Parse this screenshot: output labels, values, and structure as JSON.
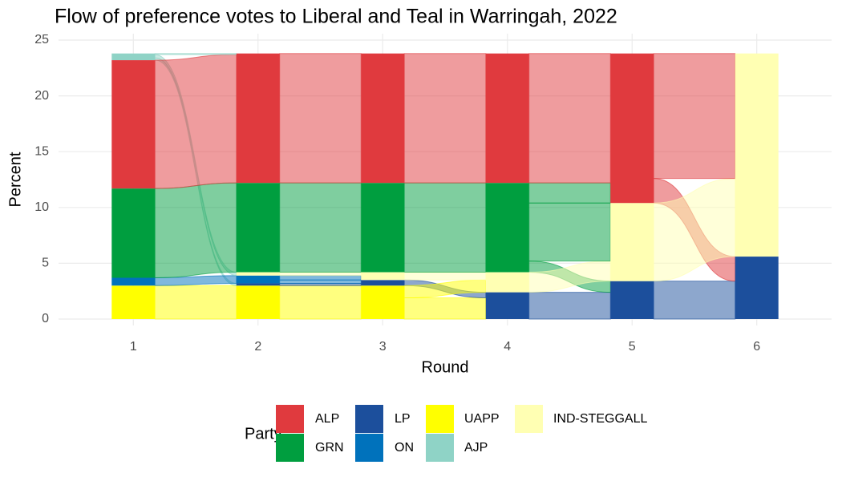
{
  "chart_data": {
    "type": "alluvial",
    "title": "Flow of preference votes to Liberal and Teal in Warringah, 2022",
    "x_label": "Round",
    "y_label": "Percent",
    "legend_title": "Party",
    "x": [
      1,
      2,
      3,
      4,
      5,
      6
    ],
    "xlim": [
      0.4,
      6.6
    ],
    "xticks": [
      1,
      2,
      3,
      4,
      5,
      6
    ],
    "ylim": [
      0,
      25
    ],
    "yticks": [
      0,
      5,
      10,
      15,
      20,
      25
    ],
    "grid": true,
    "legend": "bottom",
    "series": [
      {
        "name": "ALP",
        "color": "#e03a3e",
        "values": [
          11.5,
          11.6,
          11.6,
          11.6,
          13.4,
          null
        ]
      },
      {
        "name": "GRN",
        "color": "#009e3f",
        "values": [
          8.0,
          8.0,
          8.0,
          8.0,
          null,
          null
        ]
      },
      {
        "name": "LP",
        "color": "#1c4f9c",
        "values": [
          null,
          0.2,
          0.5,
          2.4,
          3.4,
          5.6
        ]
      },
      {
        "name": "ON",
        "color": "#0072bc",
        "values": [
          0.7,
          0.7,
          null,
          null,
          null,
          null
        ]
      },
      {
        "name": "UAPP",
        "color": "#ffff00",
        "values": [
          3.0,
          3.0,
          3.0,
          null,
          null,
          null
        ]
      },
      {
        "name": "AJP",
        "color": "#8fd3c6",
        "values": [
          0.6,
          null,
          null,
          null,
          null,
          null
        ]
      },
      {
        "name": "IND-STEGGALL",
        "color": "#ffffb3",
        "values": [
          null,
          0.3,
          0.7,
          1.8,
          7.0,
          18.2
        ]
      }
    ]
  }
}
